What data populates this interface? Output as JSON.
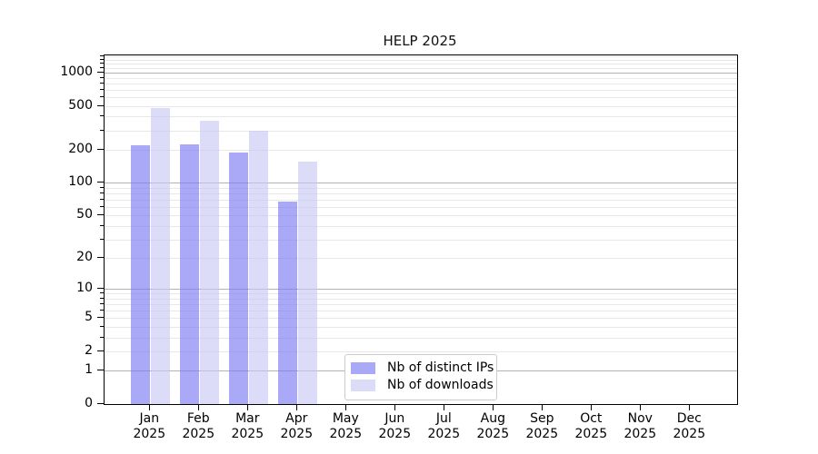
{
  "title": "HELP 2025",
  "chart_data": {
    "type": "bar",
    "title": "HELP 2025",
    "xlabel": "",
    "ylabel": "",
    "y_scale": "log10(1+x)",
    "ylim": [
      0,
      1415
    ],
    "grid": true,
    "legend_position": "bottom-center-inside",
    "y_tick_labels": [
      "0",
      "1",
      "2",
      "5",
      "10",
      "20",
      "50",
      "100",
      "200",
      "500",
      "1000"
    ],
    "y_tick_values": [
      0,
      1,
      2,
      5,
      10,
      20,
      50,
      100,
      200,
      500,
      1000
    ],
    "y_major_grid_values": [
      1,
      10,
      100,
      1000
    ],
    "y_minor_grid_values": [
      2,
      3,
      4,
      5,
      6,
      7,
      8,
      9,
      20,
      30,
      40,
      50,
      60,
      70,
      80,
      90,
      200,
      300,
      400,
      500,
      600,
      700,
      800,
      900,
      1100,
      1200,
      1300,
      1400
    ],
    "months": [
      "Jan",
      "Feb",
      "Mar",
      "Apr",
      "May",
      "Jun",
      "Jul",
      "Aug",
      "Sep",
      "Oct",
      "Nov",
      "Dec"
    ],
    "year_label": "2025",
    "series": [
      {
        "name": "Nb of distinct IPs",
        "color": "#a9a9f7",
        "fill_rgba": "rgba(123,123,243,0.65)",
        "values": [
          218,
          222,
          187,
          67,
          null,
          null,
          null,
          null,
          null,
          null,
          null,
          null
        ]
      },
      {
        "name": "Nb of downloads",
        "color": "#dcdcf8",
        "fill_rgba": "rgba(199,199,245,0.62)",
        "values": [
          475,
          368,
          299,
          156,
          null,
          null,
          null,
          null,
          null,
          null,
          null,
          null
        ]
      }
    ]
  },
  "colors": {
    "major_grid": "#b3b3b3",
    "minor_grid": "#e8e8e8",
    "spine": "#000000",
    "background": "#ffffff",
    "text": "#000000"
  }
}
